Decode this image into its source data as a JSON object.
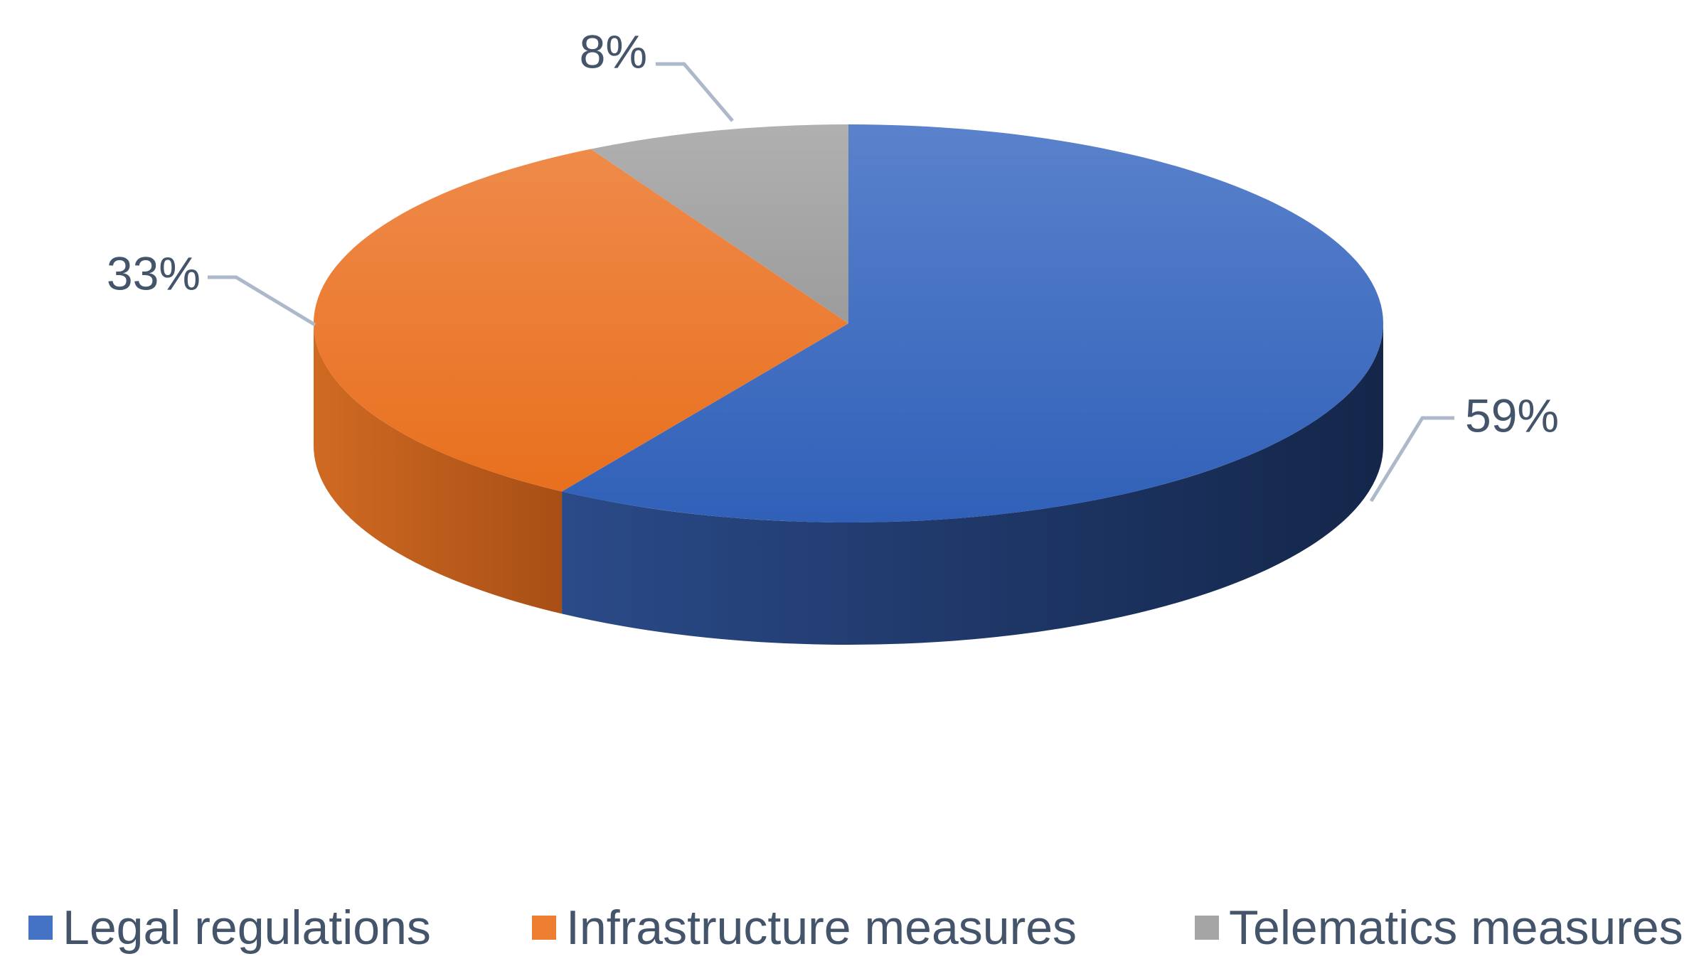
{
  "chart_data": {
    "type": "pie",
    "style": "3d",
    "categories": [
      "Legal regulations",
      "Infrastructure measures",
      "Telematics measures"
    ],
    "values": [
      59,
      33,
      8
    ],
    "data_labels": [
      "59%",
      "33%",
      "8%"
    ],
    "colors": [
      "#4472c4",
      "#ed7d31",
      "#a5a5a5"
    ],
    "side_colors": [
      "#1f3866",
      "#b4591f",
      "#7a7a7a"
    ],
    "legend": {
      "position": "bottom"
    },
    "title": "",
    "label_color": "#44546a",
    "leader_color": "#adb9ca"
  }
}
